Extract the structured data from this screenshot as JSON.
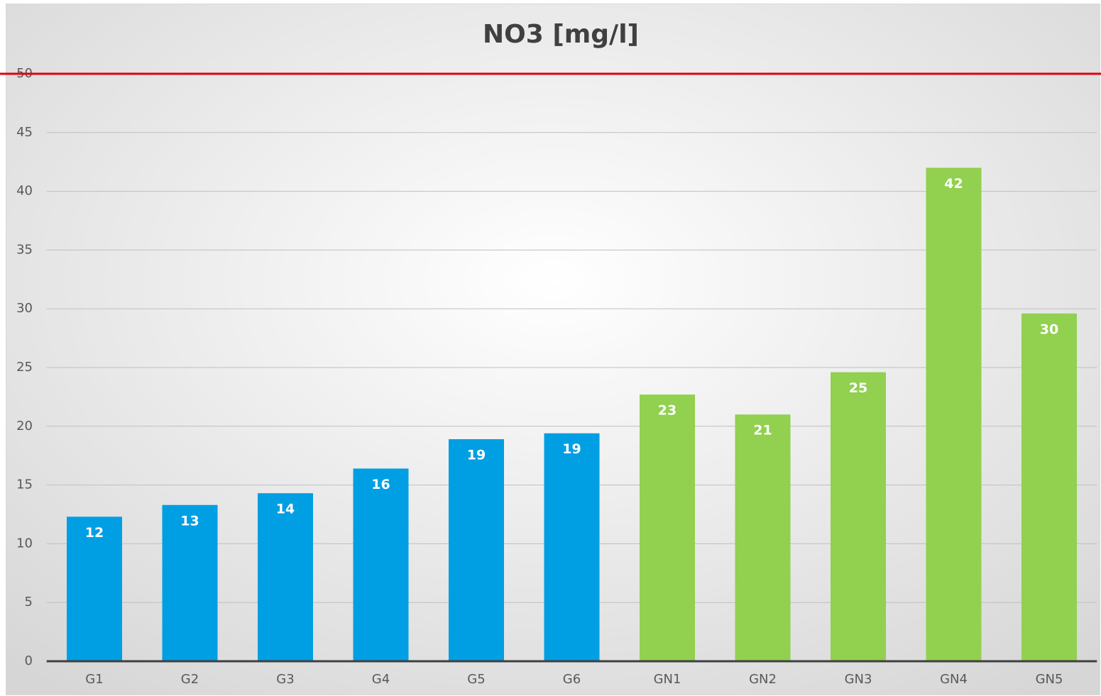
{
  "chart_data": {
    "type": "bar",
    "title": "NO3 [mg/l]",
    "categories": [
      "G1",
      "G2",
      "G3",
      "G4",
      "G5",
      "G6",
      "GN1",
      "GN2",
      "GN3",
      "GN4",
      "GN5"
    ],
    "values": [
      12.3,
      13.3,
      14.3,
      16.4,
      18.9,
      19.4,
      22.7,
      21.0,
      24.6,
      42.0,
      29.6
    ],
    "value_labels": [
      "12",
      "13",
      "14",
      "16",
      "19",
      "19",
      "23",
      "21",
      "25",
      "42",
      "30"
    ],
    "colors": [
      "#009fe3",
      "#009fe3",
      "#009fe3",
      "#009fe3",
      "#009fe3",
      "#009fe3",
      "#92d050",
      "#92d050",
      "#92d050",
      "#92d050",
      "#92d050"
    ],
    "ylim": [
      0,
      50
    ],
    "yticks": [
      0,
      5,
      10,
      15,
      20,
      25,
      30,
      35,
      40,
      45,
      50
    ],
    "grid": true,
    "reference_line": 50,
    "reference_color": "#e3000f"
  }
}
